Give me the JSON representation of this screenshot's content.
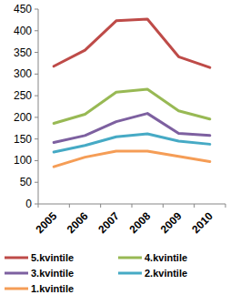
{
  "chart_data": {
    "type": "line",
    "categories": [
      "2005",
      "2006",
      "2007",
      "2008",
      "2009",
      "2010"
    ],
    "series": [
      {
        "name": "5.kvintile",
        "color": "#be4b48",
        "values": [
          318,
          355,
          423,
          427,
          340,
          315
        ]
      },
      {
        "name": "4.kvintile",
        "color": "#98b954",
        "values": [
          186,
          207,
          258,
          265,
          215,
          196
        ]
      },
      {
        "name": "3.kvintile",
        "color": "#7d60a0",
        "values": [
          142,
          158,
          190,
          209,
          163,
          158
        ]
      },
      {
        "name": "2.kvintile",
        "color": "#46aac5",
        "values": [
          120,
          135,
          155,
          162,
          145,
          138
        ]
      },
      {
        "name": "1.kvintile",
        "color": "#f59d56",
        "values": [
          86,
          108,
          122,
          122,
          110,
          98
        ]
      }
    ],
    "ylim": [
      0,
      450
    ],
    "yticks": [
      0,
      50,
      100,
      150,
      200,
      250,
      300,
      350,
      400,
      450
    ],
    "grid": false,
    "legend": "bottom"
  }
}
